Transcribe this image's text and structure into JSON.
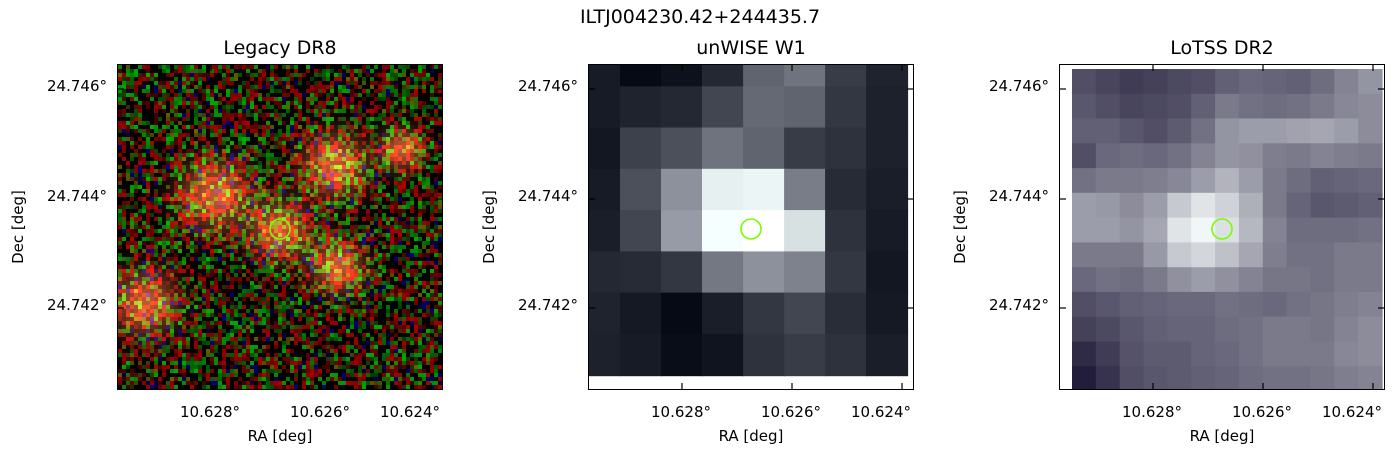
{
  "figure": {
    "title": "ILTJ004230.42+244435.7"
  },
  "panels": [
    {
      "id": "legacy",
      "title": "Legacy DR8",
      "xlabel": "RA [deg]",
      "ylabel": "Dec [deg]",
      "xticks": [
        "10.628°",
        "10.626°",
        "10.624°"
      ],
      "yticks": [
        "24.746°",
        "24.744°",
        "24.742°"
      ],
      "marker_color": "#7cfc00"
    },
    {
      "id": "unwise",
      "title": "unWISE W1",
      "xlabel": "RA [deg]",
      "ylabel": "Dec [deg]",
      "xticks": [
        "10.628°",
        "10.626°",
        "10.624°"
      ],
      "yticks": [
        "24.746°",
        "24.744°",
        "24.742°"
      ],
      "marker_color": "#7cfc00"
    },
    {
      "id": "lotss",
      "title": "LoTSS DR2",
      "xlabel": "RA [deg]",
      "ylabel": "Dec [deg]",
      "xticks": [
        "10.628°",
        "10.626°",
        "10.624°"
      ],
      "yticks": [
        "24.746°",
        "24.744°",
        "24.742°"
      ],
      "marker_color": "#7cfc00"
    }
  ]
}
